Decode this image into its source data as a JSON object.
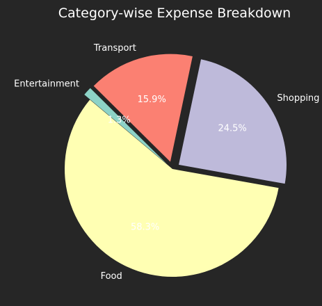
{
  "chart_data": {
    "type": "pie",
    "title": "Category-wise Expense Breakdown",
    "slices": [
      {
        "label": "Food",
        "percent": 58.3,
        "percent_label": "58.3%",
        "color": "#ffffb3",
        "exploded": false
      },
      {
        "label": "Shopping",
        "percent": 24.5,
        "percent_label": "24.5%",
        "color": "#bebada",
        "exploded": true
      },
      {
        "label": "Transport",
        "percent": 15.9,
        "percent_label": "15.9%",
        "color": "#fb8072",
        "exploded": true
      },
      {
        "label": "Entertainment",
        "percent": 1.3,
        "percent_label": "1.3%",
        "color": "#8dd3c7",
        "exploded": true
      }
    ],
    "start_angle_deg": 140,
    "direction": "counterclockwise",
    "background": "#262626",
    "text_color": "#ffffff"
  }
}
